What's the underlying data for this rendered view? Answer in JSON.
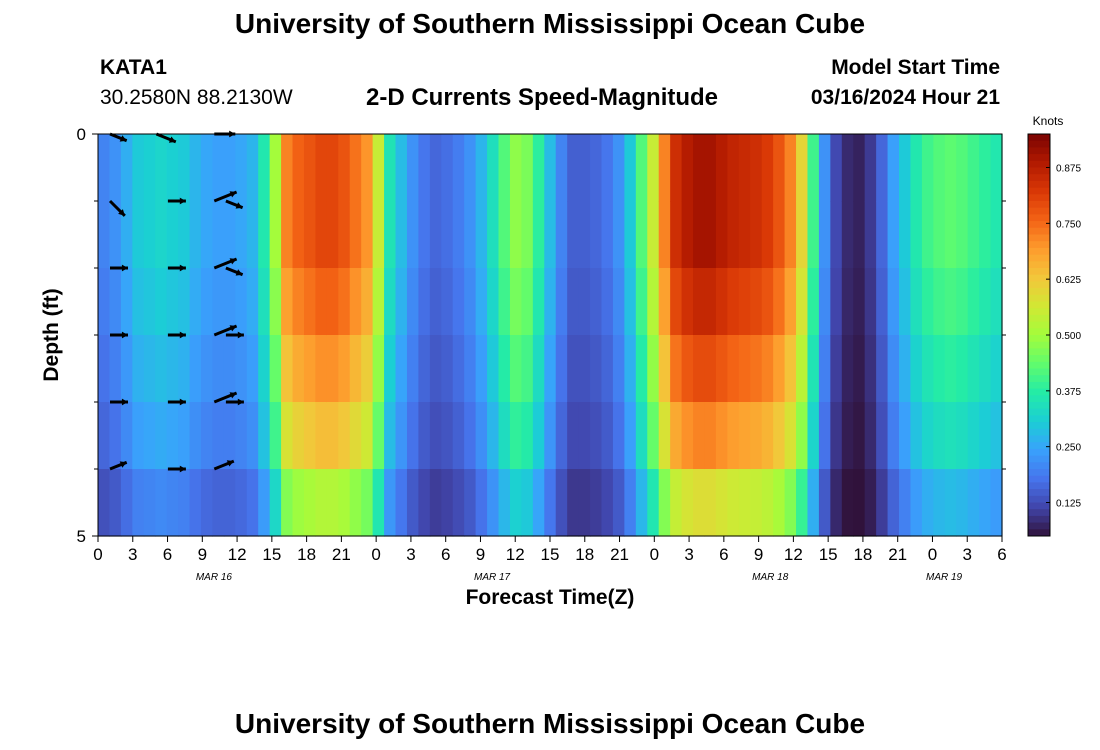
{
  "page": {
    "title": "University of Southern Mississippi Ocean Cube",
    "title_repeat": "University of Southern Mississippi Ocean Cube",
    "station": "KATA1",
    "coordinates": "30.2580N  88.2130W",
    "subtitle": "2-D Currents Speed-Magnitude",
    "model_start_label": "Model Start Time",
    "model_start_value": "03/16/2024 Hour 21"
  },
  "chart_data": {
    "type": "heatmap",
    "title": "2-D Currents Speed-Magnitude",
    "xlabel": "Forecast Time(Z)",
    "ylabel": "Depth (ft)",
    "ylim": [
      0,
      5
    ],
    "y_ticks": [
      "0",
      "5"
    ],
    "x_hours": [
      0,
      1,
      2,
      3,
      4,
      5,
      6,
      7,
      8,
      9,
      10,
      11,
      12,
      13,
      14,
      15,
      16,
      17,
      18,
      19,
      20,
      21,
      22,
      23,
      24,
      25,
      26,
      27,
      28,
      29,
      30,
      31,
      32,
      33,
      34,
      35,
      36,
      37,
      38,
      39,
      40,
      41,
      42,
      43,
      44,
      45,
      46,
      47,
      48,
      49,
      50,
      51,
      52,
      53,
      54,
      55,
      56,
      57,
      58,
      59,
      60,
      61,
      62,
      63,
      64,
      65,
      66,
      67,
      68,
      69,
      70,
      71,
      72,
      73,
      74,
      75,
      76,
      77,
      78
    ],
    "x_tick_labels": [
      "0",
      "3",
      "6",
      "9",
      "12",
      "15",
      "18",
      "21",
      "0",
      "3",
      "6",
      "9",
      "12",
      "15",
      "18",
      "21",
      "0",
      "3",
      "6",
      "9",
      "12",
      "15",
      "18",
      "21",
      "0",
      "3",
      "6"
    ],
    "date_labels": [
      {
        "label": "MAR 16",
        "hour": 10
      },
      {
        "label": "MAR 17",
        "hour": 34
      },
      {
        "label": "MAR 18",
        "hour": 58
      },
      {
        "label": "MAR 19",
        "hour": 73
      }
    ],
    "depth_rows": 6,
    "speed_profile_knots": [
      0.2,
      0.22,
      0.26,
      0.3,
      0.31,
      0.32,
      0.31,
      0.3,
      0.27,
      0.25,
      0.24,
      0.24,
      0.25,
      0.27,
      0.36,
      0.5,
      0.72,
      0.76,
      0.78,
      0.8,
      0.8,
      0.78,
      0.74,
      0.7,
      0.55,
      0.35,
      0.28,
      0.22,
      0.18,
      0.16,
      0.17,
      0.19,
      0.22,
      0.27,
      0.34,
      0.42,
      0.48,
      0.46,
      0.38,
      0.28,
      0.2,
      0.15,
      0.15,
      0.16,
      0.18,
      0.22,
      0.3,
      0.42,
      0.55,
      0.72,
      0.84,
      0.88,
      0.9,
      0.9,
      0.88,
      0.86,
      0.85,
      0.84,
      0.82,
      0.78,
      0.72,
      0.6,
      0.4,
      0.22,
      0.12,
      0.08,
      0.07,
      0.1,
      0.16,
      0.24,
      0.3,
      0.36,
      0.4,
      0.42,
      0.43,
      0.42,
      0.4,
      0.38,
      0.36
    ],
    "depth_factor": [
      1.0,
      1.0,
      0.95,
      0.88,
      0.8,
      0.65
    ],
    "vectors": [
      {
        "hour": 0,
        "row": 0,
        "dir": "ESE",
        "len": 0.6
      },
      {
        "hour": 4,
        "row": 0,
        "dir": "ESE",
        "len": 0.7
      },
      {
        "hour": 9,
        "row": 0,
        "dir": "E",
        "len": 0.7
      },
      {
        "hour": 0,
        "row": 1,
        "dir": "SE",
        "len": 0.7
      },
      {
        "hour": 5,
        "row": 1,
        "dir": "E",
        "len": 0.6
      },
      {
        "hour": 9,
        "row": 1,
        "dir": "ENE",
        "len": 0.8
      },
      {
        "hour": 10,
        "row": 1,
        "dir": "ESE",
        "len": 0.6
      },
      {
        "hour": 0,
        "row": 2,
        "dir": "E",
        "len": 0.6
      },
      {
        "hour": 5,
        "row": 2,
        "dir": "E",
        "len": 0.6
      },
      {
        "hour": 9,
        "row": 2,
        "dir": "ENE",
        "len": 0.8
      },
      {
        "hour": 10,
        "row": 2,
        "dir": "ESE",
        "len": 0.6
      },
      {
        "hour": 0,
        "row": 3,
        "dir": "E",
        "len": 0.6
      },
      {
        "hour": 5,
        "row": 3,
        "dir": "E",
        "len": 0.6
      },
      {
        "hour": 9,
        "row": 3,
        "dir": "ENE",
        "len": 0.8
      },
      {
        "hour": 10,
        "row": 3,
        "dir": "E",
        "len": 0.6
      },
      {
        "hour": 0,
        "row": 4,
        "dir": "E",
        "len": 0.6
      },
      {
        "hour": 5,
        "row": 4,
        "dir": "E",
        "len": 0.6
      },
      {
        "hour": 9,
        "row": 4,
        "dir": "ENE",
        "len": 0.8
      },
      {
        "hour": 10,
        "row": 4,
        "dir": "E",
        "len": 0.6
      },
      {
        "hour": 0,
        "row": 5,
        "dir": "ENE",
        "len": 0.6
      },
      {
        "hour": 5,
        "row": 5,
        "dir": "E",
        "len": 0.6
      },
      {
        "hour": 9,
        "row": 5,
        "dir": "ENE",
        "len": 0.7
      }
    ],
    "colorbar": {
      "label": "Knots",
      "min": 0.05,
      "max": 0.95,
      "tick_values": [
        0.125,
        0.25,
        0.375,
        0.5,
        0.625,
        0.75,
        0.875
      ],
      "tick_labels": [
        "0.125",
        "0.250",
        "0.375",
        "0.500",
        "0.625",
        "0.750",
        "0.875"
      ]
    },
    "colors": {
      "vector": "#000000",
      "scale": [
        "#30123b",
        "#4145ab",
        "#4675ed",
        "#39a2fc",
        "#1bcfd4",
        "#24eca6",
        "#61fc6c",
        "#a4fc3b",
        "#d1e834",
        "#f3c63a",
        "#fe9b2d",
        "#f36315",
        "#d93806",
        "#b11901",
        "#7a0402"
      ]
    }
  }
}
